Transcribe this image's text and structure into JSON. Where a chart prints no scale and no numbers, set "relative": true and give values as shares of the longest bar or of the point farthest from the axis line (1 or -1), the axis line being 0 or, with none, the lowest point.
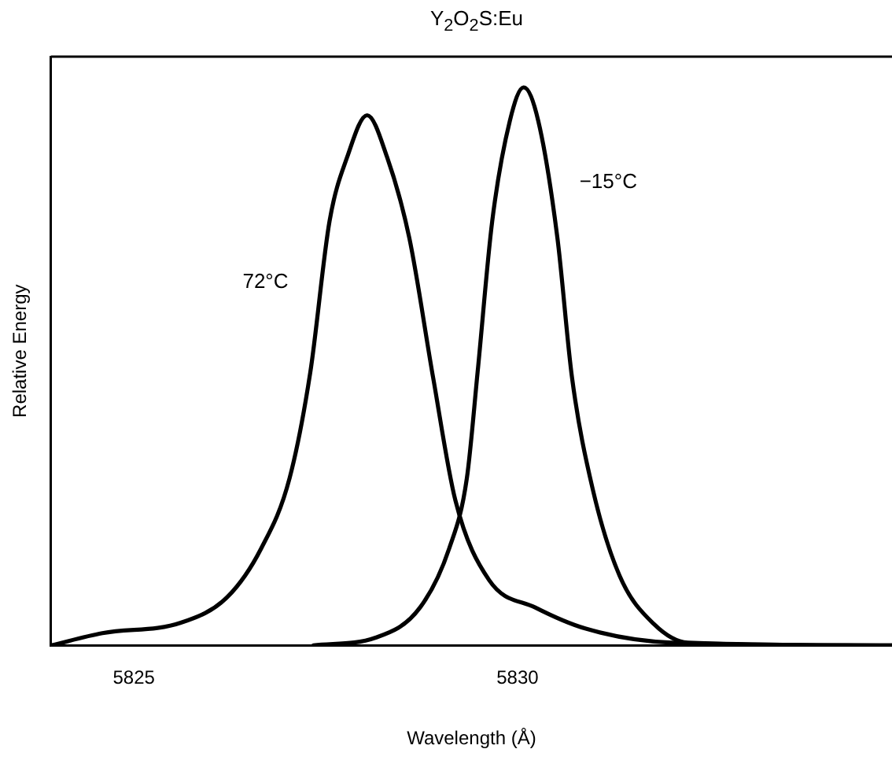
{
  "chart_data": {
    "type": "line",
    "title": "Y$_{2}$O$_{2}$S:Eu",
    "xlabel": "Wavelength (Å)",
    "ylabel": "Relative Energy",
    "relative": true,
    "xlim": [
      5823.92,
      5834.88
    ],
    "xticks": [
      5825,
      5830
    ],
    "grid": false,
    "legend": false,
    "marker": "none",
    "line_style": "solid",
    "series": [
      {
        "name": "72°C",
        "color": "#000000",
        "x": [
          5823.92,
          5824.59,
          5825.62,
          5826.22,
          5826.66,
          5827.03,
          5827.3,
          5827.55,
          5827.78,
          5828.04,
          5828.3,
          5828.59,
          5828.9,
          5829.19,
          5829.63,
          5830.23,
          5830.89,
          5832.01,
          5834.88
        ],
        "values": [
          0,
          0.022,
          0.041,
          0.087,
          0.174,
          0.3,
          0.49,
          0.76,
          0.875,
          0.95,
          0.875,
          0.73,
          0.48,
          0.26,
          0.117,
          0.068,
          0.03,
          0.005,
          0
        ]
      },
      {
        "name": "−15°C",
        "color": "#000000",
        "x": [
          5827.34,
          5828.15,
          5828.73,
          5829.11,
          5829.34,
          5829.48,
          5829.67,
          5829.9,
          5830.08,
          5830.27,
          5830.52,
          5830.71,
          5830.98,
          5831.33,
          5831.78,
          5832.22,
          5834.88
        ],
        "values": [
          0,
          0.014,
          0.068,
          0.174,
          0.3,
          0.49,
          0.76,
          0.94,
          1,
          0.94,
          0.73,
          0.48,
          0.28,
          0.125,
          0.038,
          0.005,
          0
        ]
      }
    ]
  }
}
